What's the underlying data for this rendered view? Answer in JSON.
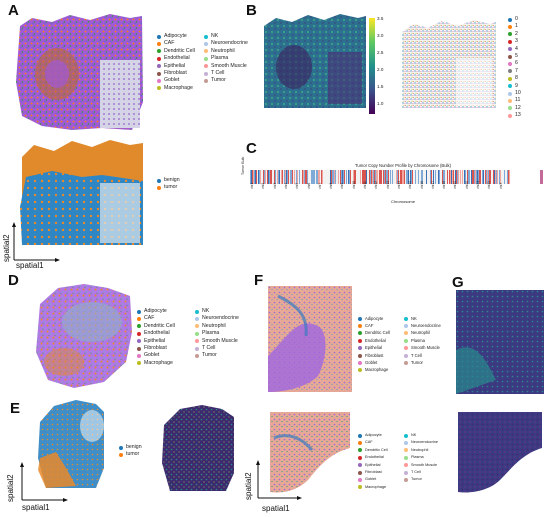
{
  "panels": {
    "A": "A",
    "B": "B",
    "C": "C",
    "D": "D",
    "E": "E",
    "F": "F",
    "G": "G"
  },
  "celltypes": [
    "Adipocyte",
    "CAF",
    "Dendritic Cell",
    "Endothelial",
    "Epithelial",
    "Fibroblast",
    "Goblet",
    "Macrophage",
    "NK",
    "Neuroendocrine",
    "Neutrophil",
    "Plasma",
    "Smooth Muscle",
    "T Cell",
    "Tumor"
  ],
  "celltype_colors": [
    "#1f77b4",
    "#ff7f0e",
    "#2ca02c",
    "#d62728",
    "#9467bd",
    "#8c564b",
    "#e377c2",
    "#bcbd22",
    "#17becf",
    "#aec7e8",
    "#ffbb78",
    "#98df8a",
    "#ff9896",
    "#c5b0d5",
    "#c49c94"
  ],
  "status": [
    {
      "label": "benign",
      "color": "#1f77b4"
    },
    {
      "label": "tumor",
      "color": "#ff7f0e"
    }
  ],
  "colorbar": {
    "ticks": [
      "3.5",
      "3.0",
      "2.5",
      "2.0",
      "1.5",
      "1.0"
    ]
  },
  "clusters": [
    "0",
    "1",
    "2",
    "3",
    "4",
    "5",
    "6",
    "7",
    "8",
    "9",
    "10",
    "11",
    "12",
    "13"
  ],
  "cluster_colors": [
    "#1f77b4",
    "#ff7f0e",
    "#2ca02c",
    "#d62728",
    "#9467bd",
    "#8c564b",
    "#e377c2",
    "#7f7f7f",
    "#bcbd22",
    "#17becf",
    "#aec7e8",
    "#ffbb78",
    "#98df8a",
    "#ff9896"
  ],
  "cnv": {
    "title": "Tumor Copy Number Profile by Chromosome (Bulk)",
    "ylabel": "Tumor Bulk",
    "xlabel": "Chromosome",
    "chromosomes": [
      "chr1",
      "chr2",
      "chr3",
      "chr4",
      "chr5",
      "chr6",
      "chr7",
      "chr8",
      "chr9",
      "chr10",
      "chr11",
      "chr12",
      "chr13",
      "chr14",
      "chr15",
      "chr16",
      "chr17",
      "chr18",
      "chr19",
      "chr20",
      "chr21",
      "chr22",
      "chrX"
    ]
  },
  "axes": {
    "x": "spatial1",
    "y": "spatial2"
  }
}
